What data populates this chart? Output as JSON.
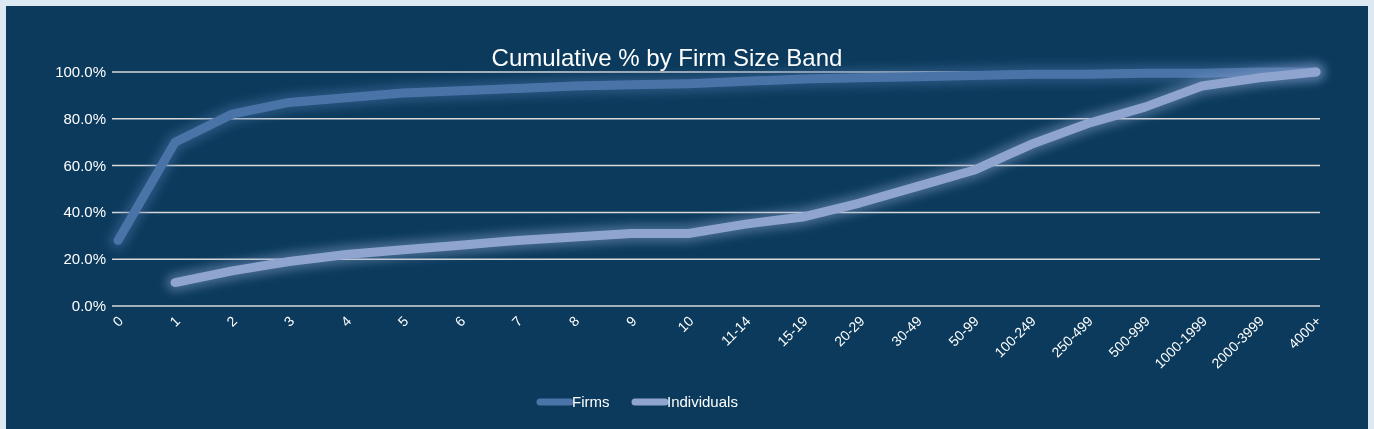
{
  "chart_data": {
    "type": "line",
    "title": "Cumulative % by Firm Size Band",
    "categories": [
      "0",
      "1",
      "2",
      "3",
      "4",
      "5",
      "6",
      "7",
      "8",
      "9",
      "10",
      "11-14",
      "15-19",
      "20-29",
      "30-49",
      "50-99",
      "100-249",
      "250-499",
      "500-999",
      "1000-1999",
      "2000-3999",
      "4000+"
    ],
    "series": [
      {
        "name": "Firms",
        "color": "#4a74a8",
        "values": [
          28,
          70,
          82,
          87,
          89,
          91,
          92,
          93,
          94,
          94.5,
          95,
          96,
          97,
          97.5,
          98,
          98.5,
          99,
          99,
          99.5,
          99.5,
          100,
          100
        ]
      },
      {
        "name": "Individuals",
        "color": "#8fa5d0",
        "values": [
          null,
          10,
          15,
          19,
          22,
          24,
          26,
          28,
          29.5,
          31,
          31,
          35,
          38,
          44,
          51,
          58,
          69,
          78,
          85,
          94,
          97.5,
          100
        ]
      }
    ],
    "ylim": [
      0,
      100
    ],
    "yticks": [
      {
        "value": 0,
        "label": "0.0%"
      },
      {
        "value": 20,
        "label": "20.0%"
      },
      {
        "value": 40,
        "label": "40.0%"
      },
      {
        "value": 60,
        "label": "60.0%"
      },
      {
        "value": 80,
        "label": "80.0%"
      },
      {
        "value": 100,
        "label": "100.0%"
      }
    ],
    "grid": "y",
    "legend": "bottom",
    "marker": "none",
    "line_style": "solid"
  }
}
